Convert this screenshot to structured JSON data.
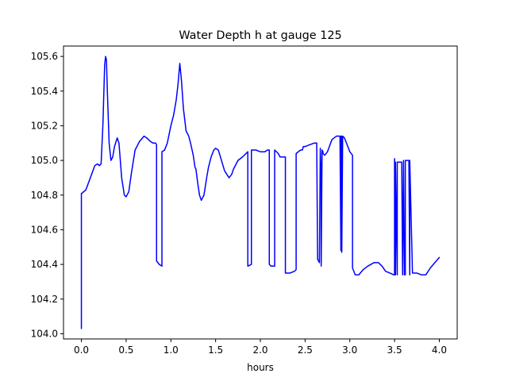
{
  "chart_data": {
    "type": "line",
    "title": "Water Depth h at gauge 125",
    "xlabel": "hours",
    "ylabel": "",
    "xlim": [
      -0.2,
      4.2
    ],
    "ylim": [
      103.97,
      105.66
    ],
    "xticks": [
      0.0,
      0.5,
      1.0,
      1.5,
      2.0,
      2.5,
      3.0,
      3.5,
      4.0
    ],
    "xtick_labels": [
      "0.0",
      "0.5",
      "1.0",
      "1.5",
      "2.0",
      "2.5",
      "3.0",
      "3.5",
      "4.0"
    ],
    "yticks": [
      104.0,
      104.2,
      104.4,
      104.6,
      104.8,
      105.0,
      105.2,
      105.4,
      105.6
    ],
    "ytick_labels": [
      "104.0",
      "104.2",
      "104.4",
      "104.6",
      "104.8",
      "105.0",
      "105.2",
      "105.4",
      "105.6"
    ],
    "grid": false,
    "series": [
      {
        "color": "#0000ff",
        "x": [
          0.0,
          0.0,
          0.0,
          0.0,
          0.005,
          0.05,
          0.1,
          0.15,
          0.18,
          0.2,
          0.22,
          0.24,
          0.26,
          0.27,
          0.28,
          0.29,
          0.31,
          0.33,
          0.35,
          0.37,
          0.4,
          0.42,
          0.45,
          0.48,
          0.5,
          0.53,
          0.56,
          0.6,
          0.65,
          0.7,
          0.73,
          0.77,
          0.8,
          0.83,
          0.84,
          0.84,
          0.87,
          0.9,
          0.9,
          0.93,
          0.96,
          1.0,
          1.03,
          1.06,
          1.08,
          1.1,
          1.12,
          1.14,
          1.17,
          1.2,
          1.22,
          1.25,
          1.27,
          1.28,
          1.3,
          1.32,
          1.34,
          1.37,
          1.4,
          1.42,
          1.45,
          1.48,
          1.5,
          1.53,
          1.56,
          1.6,
          1.65,
          1.68,
          1.7,
          1.75,
          1.8,
          1.86,
          1.86,
          1.9,
          1.9,
          1.95,
          2.0,
          2.05,
          2.08,
          2.1,
          2.1,
          2.12,
          2.16,
          2.16,
          2.2,
          2.22,
          2.25,
          2.28,
          2.28,
          2.33,
          2.38,
          2.4,
          2.4,
          2.45,
          2.47,
          2.48,
          2.5,
          2.55,
          2.6,
          2.63,
          2.64,
          2.66,
          2.67,
          2.68,
          2.68,
          2.69,
          2.7,
          2.7,
          2.72,
          2.75,
          2.8,
          2.85,
          2.89,
          2.9,
          2.9,
          2.91,
          2.91,
          2.92,
          2.94,
          2.97,
          3.0,
          3.03,
          3.03,
          3.06,
          3.1,
          3.15,
          3.2,
          3.27,
          3.32,
          3.36,
          3.4,
          3.45,
          3.49,
          3.5,
          3.5,
          3.51,
          3.51,
          3.53,
          3.53,
          3.56,
          3.58,
          3.59,
          3.6,
          3.61,
          3.62,
          3.62,
          3.66,
          3.67,
          3.67,
          3.7,
          3.75,
          3.8,
          3.85,
          3.9,
          4.0
        ],
        "y": [
          104.03,
          104.12,
          104.14,
          104.81,
          104.81,
          104.83,
          104.9,
          104.97,
          104.98,
          104.97,
          104.98,
          105.2,
          105.55,
          105.6,
          105.58,
          105.4,
          105.1,
          105.0,
          105.02,
          105.08,
          105.13,
          105.1,
          104.9,
          104.8,
          104.79,
          104.82,
          104.93,
          105.06,
          105.11,
          105.14,
          105.13,
          105.11,
          105.1,
          105.1,
          105.09,
          104.42,
          104.4,
          104.39,
          105.05,
          105.06,
          105.1,
          105.2,
          105.26,
          105.35,
          105.44,
          105.56,
          105.45,
          105.3,
          105.17,
          105.14,
          105.1,
          105.03,
          104.96,
          104.95,
          104.87,
          104.8,
          104.77,
          104.8,
          104.9,
          104.96,
          105.02,
          105.06,
          105.07,
          105.06,
          105.01,
          104.94,
          104.9,
          104.92,
          104.95,
          105.0,
          105.02,
          105.05,
          104.39,
          104.4,
          105.06,
          105.06,
          105.05,
          105.05,
          105.06,
          105.06,
          104.4,
          104.39,
          104.39,
          105.06,
          105.04,
          105.02,
          105.02,
          105.02,
          104.35,
          104.35,
          104.36,
          104.37,
          105.04,
          105.06,
          105.06,
          105.08,
          105.08,
          105.09,
          105.1,
          105.1,
          104.43,
          104.41,
          105.07,
          104.9,
          104.39,
          105.06,
          105.05,
          105.04,
          105.03,
          105.05,
          105.12,
          105.14,
          105.14,
          104.48,
          105.14,
          105.14,
          104.47,
          105.14,
          105.13,
          105.09,
          105.05,
          105.03,
          104.38,
          104.34,
          104.34,
          104.37,
          104.39,
          104.41,
          104.41,
          104.39,
          104.36,
          104.35,
          104.34,
          104.34,
          105.01,
          104.34,
          104.99,
          104.34,
          104.99,
          104.99,
          104.99,
          104.34,
          105.0,
          104.34,
          104.34,
          105.0,
          105.0,
          104.34,
          105.0,
          104.35,
          104.35,
          104.34,
          104.34,
          104.38,
          104.44
        ]
      }
    ]
  }
}
